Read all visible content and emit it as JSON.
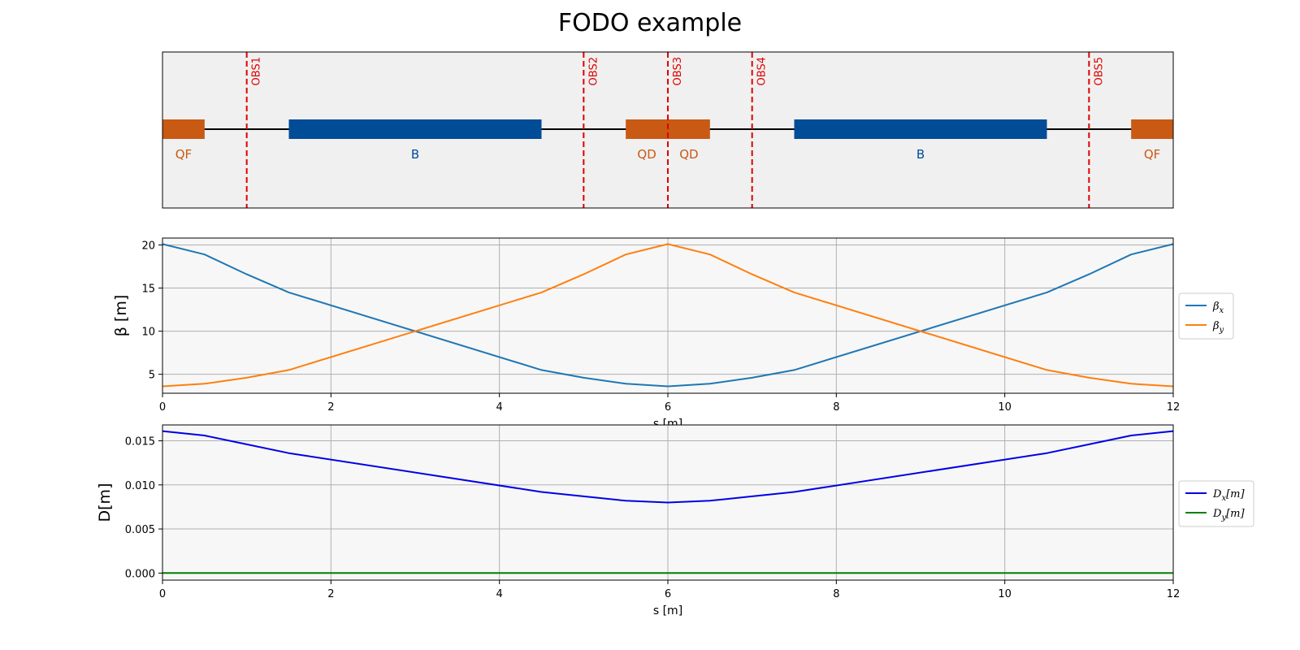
{
  "title": "FODO example",
  "colors": {
    "quad": "#c85a14",
    "bend": "#004c97",
    "observer": "#e00000",
    "beta_x": "#1f77b4",
    "beta_y": "#ff7f0e",
    "disp_x": "#0000e6",
    "disp_y": "#008000",
    "layout_bg": "#f0f0f0",
    "plot_bg": "#f7f7f7"
  },
  "layout": {
    "s_range": [
      0,
      12
    ],
    "elements": [
      {
        "label": "QF",
        "kind": "quad",
        "s_start": 0.0,
        "s_end": 0.5
      },
      {
        "label": "B",
        "kind": "bend",
        "s_start": 1.5,
        "s_end": 4.5
      },
      {
        "label": "QD",
        "kind": "quad",
        "s_start": 5.5,
        "s_end": 6.0
      },
      {
        "label": "QD",
        "kind": "quad",
        "s_start": 6.0,
        "s_end": 6.5
      },
      {
        "label": "B",
        "kind": "bend",
        "s_start": 7.5,
        "s_end": 10.5
      },
      {
        "label": "QF",
        "kind": "quad",
        "s_start": 11.5,
        "s_end": 12.0
      }
    ],
    "observers": [
      {
        "label": "OBS1",
        "s": 1.0
      },
      {
        "label": "OBS2",
        "s": 5.0
      },
      {
        "label": "OBS3",
        "s": 6.0
      },
      {
        "label": "OBS4",
        "s": 7.0
      },
      {
        "label": "OBS5",
        "s": 11.0
      }
    ]
  },
  "chart_data": [
    {
      "type": "line",
      "xlabel": "s [m]",
      "ylabel": "β [m]",
      "xlim": [
        0,
        12
      ],
      "ylim": [
        2.8,
        20.8
      ],
      "xticks": [
        0,
        2,
        4,
        6,
        8,
        10,
        12
      ],
      "yticks": [
        5,
        10,
        15,
        20
      ],
      "ytick_labels": [
        "5",
        "10",
        "15",
        "20"
      ],
      "grid": true,
      "legend_placement": "right",
      "x": [
        0,
        0.5,
        1.0,
        1.5,
        4.5,
        5.0,
        5.5,
        6.0,
        6.5,
        7.0,
        7.5,
        10.5,
        11.0,
        11.5,
        12.0
      ],
      "series": [
        {
          "name": "β",
          "subscript": "x",
          "color_key": "beta_x",
          "values": [
            20.1,
            18.9,
            16.6,
            14.5,
            5.5,
            4.6,
            3.9,
            3.6,
            3.9,
            4.6,
            5.5,
            14.5,
            16.6,
            18.9,
            20.1
          ]
        },
        {
          "name": "β",
          "subscript": "y",
          "color_key": "beta_y",
          "values": [
            3.6,
            3.9,
            4.6,
            5.5,
            14.5,
            16.6,
            18.9,
            20.1,
            18.9,
            16.6,
            14.5,
            5.5,
            4.6,
            3.9,
            3.6
          ]
        }
      ]
    },
    {
      "type": "line",
      "xlabel": "s [m]",
      "ylabel": "D[m]",
      "xlim": [
        0,
        12
      ],
      "ylim": [
        -0.0008,
        0.0168
      ],
      "xticks": [
        0,
        2,
        4,
        6,
        8,
        10,
        12
      ],
      "yticks": [
        0.0,
        0.005,
        0.01,
        0.015
      ],
      "ytick_labels": [
        "0.000",
        "0.005",
        "0.010",
        "0.015"
      ],
      "grid": true,
      "legend_placement": "right",
      "x": [
        0,
        0.5,
        1.0,
        1.5,
        4.5,
        5.0,
        5.5,
        6.0,
        6.5,
        7.0,
        7.5,
        10.5,
        11.0,
        11.5,
        12.0
      ],
      "series": [
        {
          "name": "D",
          "subscript": "x",
          "unit": "[m]",
          "color_key": "disp_x",
          "values": [
            0.0161,
            0.0156,
            0.0146,
            0.0136,
            0.0092,
            0.0087,
            0.0082,
            0.008,
            0.0082,
            0.0087,
            0.0092,
            0.0136,
            0.0146,
            0.0156,
            0.0161
          ]
        },
        {
          "name": "D",
          "subscript": "y",
          "unit": "[m]",
          "color_key": "disp_y",
          "values": [
            0,
            0,
            0,
            0,
            0,
            0,
            0,
            0,
            0,
            0,
            0,
            0,
            0,
            0,
            0
          ]
        }
      ]
    }
  ]
}
